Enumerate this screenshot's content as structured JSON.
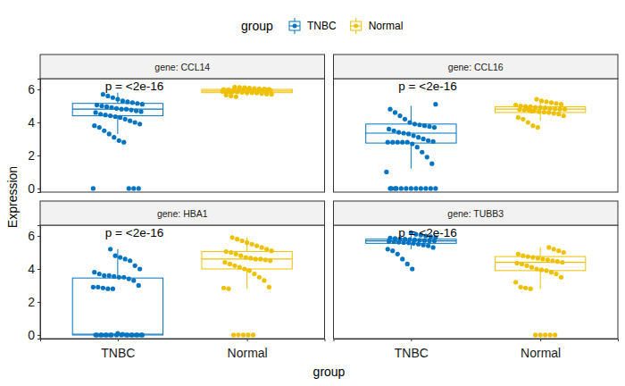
{
  "chart_data": {
    "type": "box",
    "legend": "top",
    "legend_title": "group",
    "x_label": "group",
    "y_label": "Expression",
    "categories": [
      "TNBC",
      "Normal"
    ],
    "series": [
      {
        "name": "TNBC",
        "color": "#0073C2"
      },
      {
        "name": "Normal",
        "color": "#EFC000"
      }
    ],
    "ylim": [
      -0.22,
      6.65
    ],
    "yticks": [
      0,
      2,
      4,
      6
    ],
    "panels": [
      {
        "title": "gene: CCL14",
        "annotation": "p = <2e-16",
        "groups": [
          {
            "box": {
              "low": 3.3,
              "q1": 4.4,
              "median": 4.8,
              "q3": 5.15,
              "high": 5.8
            },
            "values": [
              0,
              0,
              0,
              0,
              2.8,
              2.9,
              3.1,
              3.3,
              3.5,
              3.7,
              3.8,
              3.9,
              4.0,
              4.1,
              4.2,
              4.3,
              4.35,
              4.4,
              4.45,
              4.5,
              4.6,
              4.65,
              4.7,
              4.75,
              4.8,
              4.8,
              4.85,
              4.9,
              4.95,
              5.0,
              5.05,
              5.1,
              5.15,
              5.2,
              5.25,
              5.3,
              5.4,
              5.5,
              5.6,
              5.7
            ]
          },
          {
            "box": {
              "low": 5.6,
              "q1": 5.8,
              "median": 5.9,
              "q3": 6.0,
              "high": 6.15
            },
            "values": [
              5.55,
              5.6,
              5.65,
              5.7,
              5.72,
              5.75,
              5.78,
              5.8,
              5.8,
              5.82,
              5.84,
              5.85,
              5.86,
              5.88,
              5.9,
              5.9,
              5.91,
              5.92,
              5.93,
              5.95,
              5.96,
              5.97,
              5.98,
              6.0,
              6.0,
              6.02,
              6.03,
              6.05,
              6.07,
              6.1,
              6.12,
              6.15,
              5.83,
              5.87,
              5.94,
              5.99
            ]
          }
        ]
      },
      {
        "title": "gene: CCL16",
        "annotation": "p = <2e-16",
        "groups": [
          {
            "box": {
              "low": 1.2,
              "q1": 2.75,
              "median": 3.35,
              "q3": 3.9,
              "high": 5.0
            },
            "values": [
              0,
              0,
              0,
              0,
              0,
              0,
              0,
              0,
              0,
              0,
              0,
              0,
              1.0,
              1.5,
              1.9,
              2.2,
              2.5,
              2.7,
              2.8,
              2.8,
              2.8,
              2.8,
              2.8,
              2.85,
              2.9,
              3.0,
              3.1,
              3.2,
              3.3,
              3.35,
              3.4,
              3.5,
              3.6,
              3.7,
              3.75,
              3.8,
              3.85,
              3.9,
              4.0,
              4.2,
              4.4,
              4.6,
              4.8,
              5.1
            ]
          },
          {
            "box": {
              "low": 4.1,
              "q1": 4.6,
              "median": 4.8,
              "q3": 4.95,
              "high": 5.4
            },
            "values": [
              3.7,
              3.8,
              4.0,
              4.2,
              4.3,
              4.4,
              4.5,
              4.55,
              4.6,
              4.62,
              4.65,
              4.7,
              4.72,
              4.75,
              4.78,
              4.8,
              4.8,
              4.82,
              4.85,
              4.88,
              4.9,
              4.92,
              4.95,
              4.97,
              5.0,
              5.05,
              5.1,
              5.15,
              5.2,
              5.25,
              5.3,
              5.4,
              4.68,
              4.84
            ]
          }
        ]
      },
      {
        "title": "gene: HBA1",
        "annotation": "p = <2e-16",
        "groups": [
          {
            "box": {
              "low": 0,
              "q1": 0,
              "median": 0.05,
              "q3": 3.45,
              "high": 5.2
            },
            "values": [
              0,
              0,
              0,
              0,
              0,
              0,
              0,
              0,
              0,
              0,
              0,
              0,
              0,
              0,
              0,
              0,
              0,
              0,
              0.05,
              0.1,
              2.8,
              2.8,
              2.85,
              2.9,
              2.9,
              3.0,
              3.3,
              3.4,
              3.5,
              3.5,
              3.55,
              3.6,
              3.6,
              3.7,
              3.8,
              4.0,
              4.2,
              4.5,
              4.6,
              4.7,
              4.8,
              5.2
            ]
          },
          {
            "box": {
              "low": 2.8,
              "q1": 4.0,
              "median": 4.6,
              "q3": 5.05,
              "high": 5.9
            },
            "values": [
              0,
              0,
              0,
              0,
              0,
              2.8,
              2.85,
              2.9,
              3.3,
              3.5,
              3.7,
              3.9,
              4.0,
              4.1,
              4.2,
              4.3,
              4.4,
              4.5,
              4.55,
              4.6,
              4.6,
              4.65,
              4.7,
              4.8,
              4.9,
              5.0,
              5.05,
              5.1,
              5.2,
              5.3,
              5.4,
              5.5,
              5.6,
              5.7,
              5.8,
              5.9
            ]
          }
        ]
      },
      {
        "title": "gene: TUBB3",
        "annotation": "p = <2e-16",
        "groups": [
          {
            "box": {
              "low": 5.2,
              "q1": 5.55,
              "median": 5.7,
              "q3": 5.8,
              "high": 6.1
            },
            "values": [
              4.0,
              4.3,
              4.6,
              4.9,
              5.1,
              5.2,
              5.3,
              5.4,
              5.45,
              5.5,
              5.55,
              5.58,
              5.6,
              5.62,
              5.65,
              5.68,
              5.7,
              5.7,
              5.72,
              5.74,
              5.76,
              5.78,
              5.8,
              5.82,
              5.85,
              5.88,
              5.9,
              5.95,
              6.0,
              6.05,
              6.1,
              6.2
            ]
          },
          {
            "box": {
              "low": 2.8,
              "q1": 3.9,
              "median": 4.4,
              "q3": 4.75,
              "high": 5.3
            },
            "values": [
              0,
              0,
              0,
              0,
              0,
              2.8,
              2.85,
              2.9,
              3.2,
              3.5,
              3.7,
              3.8,
              3.9,
              3.95,
              4.0,
              4.1,
              4.2,
              4.3,
              4.35,
              4.4,
              4.45,
              4.5,
              4.55,
              4.6,
              4.65,
              4.7,
              4.75,
              4.8,
              4.9,
              5.0,
              5.1,
              5.2,
              5.3
            ]
          }
        ]
      }
    ]
  }
}
